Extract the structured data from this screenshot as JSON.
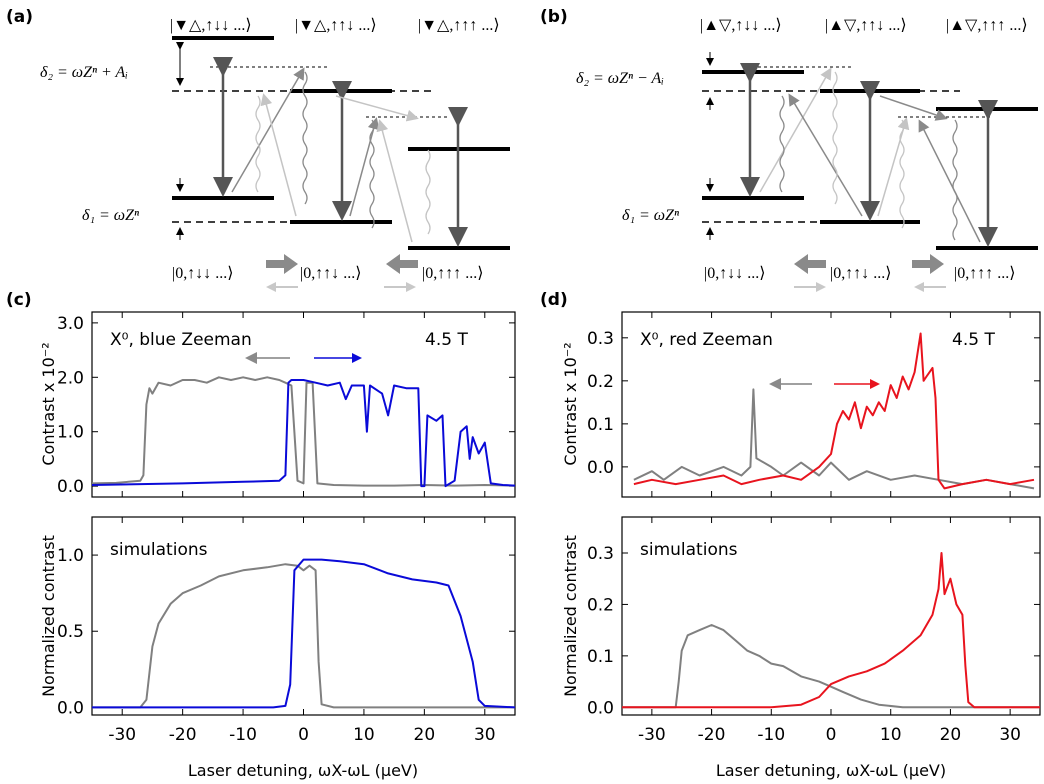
{
  "panel_labels": {
    "a": "(a)",
    "b": "(b)",
    "c": "(c)",
    "d": "(d)"
  },
  "diagram_a": {
    "top_states": [
      "|▼△,↑↓↓ ...⟩",
      "|▼△,↑↑↓ ...⟩",
      "|▼△,↑↑↑ ...⟩"
    ],
    "bottom_states": [
      "|0,↑↓↓ ...⟩",
      "|0,↑↑↓ ...⟩",
      "|0,↑↑↑ ...⟩"
    ],
    "delta2": "δ₂ = ωZⁿ + Aᵢ",
    "delta1": "δ₁ = ωZⁿ"
  },
  "diagram_b": {
    "top_states": [
      "|▲▽,↑↓↓ ...⟩",
      "|▲▽,↑↑↓ ...⟩",
      "|▲▽,↑↑↑ ...⟩"
    ],
    "bottom_states": [
      "|0,↑↓↓ ...⟩",
      "|0,↑↑↓ ...⟩",
      "|0,↑↑↑ ...⟩"
    ],
    "delta2": "δ₂ = ωZⁿ − Aᵢ",
    "delta1": "δ₁ = ωZⁿ"
  },
  "colors": {
    "gray": "#808080",
    "blue": "#0a0ad8",
    "red": "#e8141e",
    "dark": "#555555"
  },
  "chart_data": [
    {
      "id": "c-top",
      "type": "line",
      "annotation_left": "X⁰, blue Zeeman",
      "annotation_right": "4.5 T",
      "ylabel": "Contrast x 10⁻²",
      "xlim": [
        -35,
        35
      ],
      "ylim": [
        -0.2,
        3.2
      ],
      "yticks": [
        0.0,
        1.0,
        2.0,
        3.0
      ],
      "ytick_labels": [
        "0.0",
        "1.0",
        "2.0",
        "3.0"
      ],
      "series": [
        {
          "color": "gray",
          "points": [
            [
              -35,
              0.05
            ],
            [
              -31,
              0.06
            ],
            [
              -27,
              0.1
            ],
            [
              -26.5,
              0.2
            ],
            [
              -26,
              1.5
            ],
            [
              -25.5,
              1.8
            ],
            [
              -25,
              1.7
            ],
            [
              -24,
              1.9
            ],
            [
              -22,
              1.85
            ],
            [
              -20,
              1.95
            ],
            [
              -18,
              1.95
            ],
            [
              -16,
              1.9
            ],
            [
              -14,
              2.0
            ],
            [
              -12,
              1.95
            ],
            [
              -10,
              2.0
            ],
            [
              -8,
              1.95
            ],
            [
              -6,
              2.0
            ],
            [
              -4,
              1.95
            ],
            [
              -3,
              1.9
            ],
            [
              -2,
              1.85
            ],
            [
              -1,
              0.1
            ],
            [
              0,
              0.05
            ],
            [
              0.5,
              1.9
            ],
            [
              1.5,
              1.9
            ],
            [
              2.3,
              0.05
            ],
            [
              5,
              0.02
            ],
            [
              10,
              0.01
            ],
            [
              15,
              0.01
            ],
            [
              20,
              0.02
            ],
            [
              25,
              0.01
            ],
            [
              30,
              0.02
            ],
            [
              35,
              0.01
            ]
          ]
        },
        {
          "color": "blue",
          "points": [
            [
              -35,
              0.02
            ],
            [
              -20,
              0.05
            ],
            [
              -10,
              0.08
            ],
            [
              -4,
              0.1
            ],
            [
              -3,
              0.2
            ],
            [
              -2.5,
              1.9
            ],
            [
              -2,
              1.95
            ],
            [
              0,
              1.95
            ],
            [
              2,
              1.9
            ],
            [
              4,
              1.85
            ],
            [
              6,
              1.9
            ],
            [
              7,
              1.6
            ],
            [
              8,
              1.85
            ],
            [
              10,
              1.85
            ],
            [
              10.5,
              1.0
            ],
            [
              11,
              1.85
            ],
            [
              13,
              1.7
            ],
            [
              14,
              1.3
            ],
            [
              15,
              1.85
            ],
            [
              17,
              1.8
            ],
            [
              19,
              1.8
            ],
            [
              19.5,
              0.0
            ],
            [
              20,
              0.0
            ],
            [
              20.5,
              1.3
            ],
            [
              22,
              1.2
            ],
            [
              23,
              1.3
            ],
            [
              23.5,
              0.0
            ],
            [
              25,
              0.1
            ],
            [
              26,
              1.0
            ],
            [
              27,
              1.1
            ],
            [
              27.5,
              0.5
            ],
            [
              28,
              0.9
            ],
            [
              29,
              0.6
            ],
            [
              30,
              0.8
            ],
            [
              31,
              0.05
            ],
            [
              33,
              0.02
            ],
            [
              35,
              0.01
            ]
          ]
        }
      ]
    },
    {
      "id": "c-bot",
      "type": "line",
      "annotation_left": "simulations",
      "ylabel": "Normalized contrast",
      "xlabel": "Laser detuning, ωX-ωL (μeV)",
      "xlim": [
        -35,
        35
      ],
      "ylim": [
        -0.05,
        1.25
      ],
      "xticks": [
        -30,
        -20,
        -10,
        0,
        10,
        20,
        30
      ],
      "xtick_labels": [
        "-30",
        "-20",
        "-10",
        "0",
        "10",
        "20",
        "30"
      ],
      "yticks": [
        0.0,
        0.5,
        1.0
      ],
      "ytick_labels": [
        "0.0",
        "0.5",
        "1.0"
      ],
      "series": [
        {
          "color": "gray",
          "points": [
            [
              -35,
              0.0
            ],
            [
              -27,
              0.0
            ],
            [
              -26,
              0.05
            ],
            [
              -25,
              0.4
            ],
            [
              -24,
              0.55
            ],
            [
              -22,
              0.68
            ],
            [
              -20,
              0.75
            ],
            [
              -17,
              0.8
            ],
            [
              -14,
              0.86
            ],
            [
              -10,
              0.9
            ],
            [
              -6,
              0.92
            ],
            [
              -3,
              0.94
            ],
            [
              -1,
              0.93
            ],
            [
              0,
              0.9
            ],
            [
              1,
              0.93
            ],
            [
              2,
              0.9
            ],
            [
              2.5,
              0.3
            ],
            [
              3,
              0.02
            ],
            [
              5,
              0.0
            ],
            [
              35,
              0.0
            ]
          ]
        },
        {
          "color": "blue",
          "points": [
            [
              -35,
              0.0
            ],
            [
              -5,
              0.0
            ],
            [
              -3,
              0.01
            ],
            [
              -2.2,
              0.15
            ],
            [
              -1.5,
              0.9
            ],
            [
              0,
              0.97
            ],
            [
              3,
              0.97
            ],
            [
              6,
              0.96
            ],
            [
              10,
              0.94
            ],
            [
              14,
              0.88
            ],
            [
              18,
              0.84
            ],
            [
              22,
              0.82
            ],
            [
              24,
              0.8
            ],
            [
              26,
              0.6
            ],
            [
              28,
              0.3
            ],
            [
              29,
              0.05
            ],
            [
              30,
              0.01
            ],
            [
              35,
              0.0
            ]
          ]
        }
      ]
    },
    {
      "id": "d-top",
      "type": "line",
      "annotation_left": "X⁰, red Zeeman",
      "annotation_right": "4.5 T",
      "ylabel": "Contrast x 10⁻²",
      "xlim": [
        -35,
        35
      ],
      "ylim": [
        -0.07,
        0.36
      ],
      "yticks": [
        0.0,
        0.1,
        0.2,
        0.3
      ],
      "ytick_labels": [
        "0.0",
        "0.1",
        "0.2",
        "0.3"
      ],
      "series": [
        {
          "color": "gray",
          "points": [
            [
              -33,
              -0.03
            ],
            [
              -30,
              -0.01
            ],
            [
              -28,
              -0.03
            ],
            [
              -25,
              0.0
            ],
            [
              -22,
              -0.02
            ],
            [
              -18,
              0.0
            ],
            [
              -15,
              -0.02
            ],
            [
              -13.5,
              0.0
            ],
            [
              -13,
              0.18
            ],
            [
              -12.5,
              0.02
            ],
            [
              -10,
              0.0
            ],
            [
              -8,
              -0.02
            ],
            [
              -5,
              0.01
            ],
            [
              -2,
              -0.02
            ],
            [
              0,
              0.01
            ],
            [
              3,
              -0.03
            ],
            [
              6,
              -0.01
            ],
            [
              10,
              -0.03
            ],
            [
              14,
              -0.02
            ],
            [
              18,
              -0.03
            ],
            [
              22,
              -0.04
            ],
            [
              26,
              -0.03
            ],
            [
              30,
              -0.04
            ],
            [
              34,
              -0.05
            ]
          ]
        },
        {
          "color": "red",
          "points": [
            [
              -33,
              -0.04
            ],
            [
              -30,
              -0.03
            ],
            [
              -26,
              -0.04
            ],
            [
              -22,
              -0.03
            ],
            [
              -18,
              -0.02
            ],
            [
              -15,
              -0.04
            ],
            [
              -12,
              -0.03
            ],
            [
              -8,
              -0.02
            ],
            [
              -5,
              -0.03
            ],
            [
              -2,
              0.0
            ],
            [
              0,
              0.03
            ],
            [
              1,
              0.1
            ],
            [
              2,
              0.13
            ],
            [
              3,
              0.11
            ],
            [
              4,
              0.15
            ],
            [
              5,
              0.09
            ],
            [
              6,
              0.14
            ],
            [
              7,
              0.12
            ],
            [
              8,
              0.15
            ],
            [
              9,
              0.13
            ],
            [
              10,
              0.19
            ],
            [
              11,
              0.16
            ],
            [
              12,
              0.21
            ],
            [
              13,
              0.18
            ],
            [
              14,
              0.22
            ],
            [
              15,
              0.31
            ],
            [
              15.5,
              0.2
            ],
            [
              16,
              0.21
            ],
            [
              17,
              0.23
            ],
            [
              17.5,
              0.16
            ],
            [
              18,
              -0.03
            ],
            [
              19,
              -0.05
            ],
            [
              22,
              -0.04
            ],
            [
              26,
              -0.03
            ],
            [
              30,
              -0.04
            ],
            [
              34,
              -0.03
            ]
          ]
        }
      ]
    },
    {
      "id": "d-bot",
      "type": "line",
      "annotation_left": "simulations",
      "ylabel": "",
      "xlabel": "Laser detuning, ωX-ωL (μeV)",
      "xlim": [
        -35,
        35
      ],
      "ylim": [
        -0.015,
        0.37
      ],
      "xticks": [
        -30,
        -20,
        -10,
        0,
        10,
        20,
        30
      ],
      "xtick_labels": [
        "-30",
        "-20",
        "-10",
        "0",
        "10",
        "20",
        "30"
      ],
      "yticks": [
        0.0,
        0.1,
        0.2,
        0.3
      ],
      "ytick_labels": [
        "0.0",
        "0.1",
        "0.2",
        "0.3"
      ],
      "series": [
        {
          "color": "gray",
          "points": [
            [
              -35,
              0.0
            ],
            [
              -26,
              0.0
            ],
            [
              -25.5,
              0.05
            ],
            [
              -25,
              0.11
            ],
            [
              -24,
              0.14
            ],
            [
              -22,
              0.15
            ],
            [
              -20,
              0.16
            ],
            [
              -18,
              0.15
            ],
            [
              -16,
              0.13
            ],
            [
              -14,
              0.11
            ],
            [
              -12,
              0.1
            ],
            [
              -10,
              0.085
            ],
            [
              -8,
              0.08
            ],
            [
              -5,
              0.06
            ],
            [
              -2,
              0.05
            ],
            [
              0,
              0.04
            ],
            [
              2,
              0.03
            ],
            [
              5,
              0.015
            ],
            [
              8,
              0.005
            ],
            [
              12,
              0.0
            ],
            [
              35,
              0.0
            ]
          ]
        },
        {
          "color": "red",
          "points": [
            [
              -35,
              0.0
            ],
            [
              -10,
              0.0
            ],
            [
              -5,
              0.005
            ],
            [
              -2,
              0.02
            ],
            [
              0,
              0.045
            ],
            [
              3,
              0.06
            ],
            [
              6,
              0.07
            ],
            [
              9,
              0.085
            ],
            [
              12,
              0.11
            ],
            [
              15,
              0.14
            ],
            [
              17,
              0.18
            ],
            [
              18,
              0.23
            ],
            [
              18.5,
              0.3
            ],
            [
              19,
              0.22
            ],
            [
              20,
              0.25
            ],
            [
              21,
              0.2
            ],
            [
              22,
              0.18
            ],
            [
              22.5,
              0.08
            ],
            [
              23,
              0.01
            ],
            [
              24,
              0.0
            ],
            [
              35,
              0.0
            ]
          ]
        }
      ]
    }
  ]
}
